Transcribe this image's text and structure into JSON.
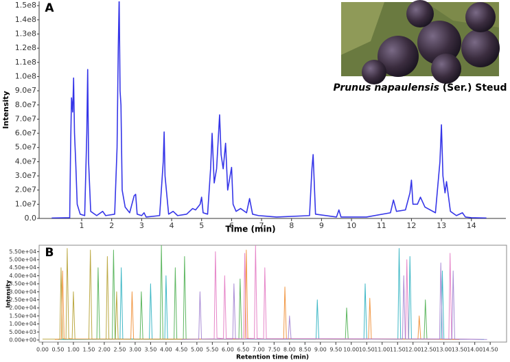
{
  "chart_data": [
    {
      "type": "line",
      "panel_label": "A",
      "xlabel": "Time (min)",
      "ylabel": "Intensity",
      "xlim": [
        -0.42,
        15.15
      ],
      "ylim": [
        0,
        153000000
      ],
      "xticks": [
        1,
        2,
        3,
        4,
        5,
        6,
        7,
        8,
        9,
        10,
        11,
        12,
        13,
        14
      ],
      "yticks": [
        {
          "value": 0,
          "label": "0.0"
        },
        {
          "value": 10000000,
          "label": "1.0e7"
        },
        {
          "value": 20000000,
          "label": "2.0e7"
        },
        {
          "value": 30000000,
          "label": "3.0e7"
        },
        {
          "value": 40000000,
          "label": "4.0e7"
        },
        {
          "value": 50000000,
          "label": "5.0e7"
        },
        {
          "value": 60000000,
          "label": "6.0e7"
        },
        {
          "value": 70000000,
          "label": "7.0e7"
        },
        {
          "value": 80000000,
          "label": "8.0e7"
        },
        {
          "value": 90000000,
          "label": "9.0e7"
        },
        {
          "value": 100000000,
          "label": "1.0e8"
        },
        {
          "value": 110000000,
          "label": "1.1e8"
        },
        {
          "value": 120000000,
          "label": "1.2e8"
        },
        {
          "value": 130000000,
          "label": "1.3e8"
        },
        {
          "value": 140000000,
          "label": "1.4e8"
        },
        {
          "value": 150000000,
          "label": "1.5e8"
        }
      ],
      "caption": {
        "italic": "Prunus napaulensis",
        "rest": "(Ser.) Steud"
      },
      "series": [
        {
          "color": "#1f1fe6",
          "x": [
            0,
            0.6,
            0.63,
            0.66,
            0.7,
            0.73,
            0.76,
            0.8,
            0.85,
            0.95,
            1.1,
            1.17,
            1.2,
            1.23,
            1.3,
            1.5,
            1.7,
            1.8,
            2.1,
            2.18,
            2.22,
            2.25,
            2.28,
            2.31,
            2.35,
            2.45,
            2.6,
            2.75,
            2.8,
            2.85,
            3.0,
            3.08,
            3.15,
            3.6,
            3.72,
            3.75,
            3.78,
            3.9,
            4.05,
            4.2,
            4.5,
            4.7,
            4.8,
            4.95,
            5.0,
            5.05,
            5.2,
            5.3,
            5.35,
            5.42,
            5.5,
            5.6,
            5.65,
            5.72,
            5.8,
            5.87,
            6.0,
            6.05,
            6.15,
            6.3,
            6.5,
            6.6,
            6.7,
            6.9,
            7.5,
            8.6,
            8.68,
            8.72,
            8.8,
            9.5,
            9.58,
            9.65,
            10.5,
            11.3,
            11.4,
            11.5,
            11.8,
            11.95,
            12.0,
            12.05,
            12.2,
            12.3,
            12.45,
            12.8,
            12.95,
            13.0,
            13.05,
            13.12,
            13.17,
            13.3,
            13.5,
            13.7,
            13.8,
            14.0,
            14.5
          ],
          "values": [
            300000,
            500000,
            50000000,
            85000000,
            75000000,
            99000000,
            60000000,
            40000000,
            10000000,
            3000000,
            2000000,
            60000000,
            105000000,
            40000000,
            5000000,
            2000000,
            5000000,
            2000000,
            3000000,
            50000000,
            120000000,
            156000000,
            90000000,
            80000000,
            20000000,
            8000000,
            4000000,
            16000000,
            17000000,
            3000000,
            2000000,
            4000000,
            1000000,
            2000000,
            40000000,
            61000000,
            30000000,
            3000000,
            5000000,
            2000000,
            3000000,
            7000000,
            6000000,
            10000000,
            15000000,
            4000000,
            3000000,
            35000000,
            60000000,
            25000000,
            35000000,
            73000000,
            45000000,
            35000000,
            53000000,
            20000000,
            36000000,
            10000000,
            5000000,
            7000000,
            4000000,
            14000000,
            3000000,
            2000000,
            1000000,
            2000000,
            35000000,
            45000000,
            3000000,
            1000000,
            6000000,
            1000000,
            1000000,
            4000000,
            13000000,
            5000000,
            6000000,
            18000000,
            27000000,
            10000000,
            10000000,
            15000000,
            8000000,
            4000000,
            40000000,
            66000000,
            30000000,
            18000000,
            26000000,
            5000000,
            2000000,
            4000000,
            1000000,
            500000,
            300000
          ]
        }
      ]
    },
    {
      "type": "line",
      "panel_label": "B",
      "xlabel": "Retention time (min)",
      "ylabel": "Intensity",
      "xlim": [
        -0.11,
        15.03
      ],
      "ylim": [
        -1300,
        59000
      ],
      "xticks": [
        {
          "value": 0,
          "label": "0.00"
        },
        {
          "value": 0.5,
          "label": "0.50"
        },
        {
          "value": 1,
          "label": "1.00"
        },
        {
          "value": 1.5,
          "label": "1.50"
        },
        {
          "value": 2,
          "label": "2.00"
        },
        {
          "value": 2.5,
          "label": "2.50"
        },
        {
          "value": 3,
          "label": "3.00"
        },
        {
          "value": 3.5,
          "label": "3.50"
        },
        {
          "value": 4,
          "label": "4.00"
        },
        {
          "value": 4.5,
          "label": "4.50"
        },
        {
          "value": 5,
          "label": "5.00"
        },
        {
          "value": 5.5,
          "label": "5.50"
        },
        {
          "value": 6,
          "label": "6.00"
        },
        {
          "value": 6.5,
          "label": "6.50"
        },
        {
          "value": 7,
          "label": "7.00"
        },
        {
          "value": 7.5,
          "label": "7.50"
        },
        {
          "value": 8,
          "label": "8.00"
        },
        {
          "value": 8.5,
          "label": "8.50"
        },
        {
          "value": 9,
          "label": "9.00"
        },
        {
          "value": 9.5,
          "label": "9.50"
        },
        {
          "value": 10,
          "label": "10.00"
        },
        {
          "value": 10.5,
          "label": "10.50"
        },
        {
          "value": 11,
          "label": "11.00"
        },
        {
          "value": 11.5,
          "label": "11.50"
        },
        {
          "value": 12,
          "label": "12.00"
        },
        {
          "value": 12.5,
          "label": "12.50"
        },
        {
          "value": 13,
          "label": "13.00"
        },
        {
          "value": 13.5,
          "label": "13.50"
        },
        {
          "value": 14,
          "label": "14.00"
        },
        {
          "value": 14.5,
          "label": "14.50"
        }
      ],
      "yticks": [
        {
          "value": 0,
          "label": "0.00e+00"
        },
        {
          "value": 5000,
          "label": "5.00e+03"
        },
        {
          "value": 10000,
          "label": "1.00e+04"
        },
        {
          "value": 15000,
          "label": "1.50e+04"
        },
        {
          "value": 20000,
          "label": "2.00e+04"
        },
        {
          "value": 25000,
          "label": "2.50e+04"
        },
        {
          "value": 30000,
          "label": "3.00e+04"
        },
        {
          "value": 35000,
          "label": "3.50e+04"
        },
        {
          "value": 40000,
          "label": "4.00e+04"
        },
        {
          "value": 45000,
          "label": "4.50e+04"
        },
        {
          "value": 50000,
          "label": "5.00e+04"
        },
        {
          "value": 55000,
          "label": "5.50e+04"
        }
      ],
      "series": [
        {
          "color": "#b5a030",
          "x": [
            0,
            0.56,
            0.6,
            0.65,
            0.76,
            0.8,
            0.85,
            0.96,
            1.0,
            1.05,
            1.5,
            1.55,
            1.6,
            2.06,
            2.1,
            2.15,
            2.36,
            2.4,
            2.45,
            4.5
          ],
          "values": [
            500,
            500,
            45000,
            800,
            600,
            57000,
            900,
            700,
            30000,
            600,
            500,
            56000,
            700,
            500,
            52000,
            600,
            500,
            30000,
            500,
            400
          ]
        },
        {
          "color": "#4caf50",
          "x": [
            0.5,
            1.76,
            1.8,
            1.85,
            2.26,
            2.3,
            2.35,
            3.16,
            3.2,
            3.25,
            3.81,
            3.85,
            3.9,
            4.26,
            4.3,
            4.35,
            4.56,
            4.6,
            4.65,
            6.36,
            6.4,
            6.45,
            9.81,
            9.85,
            9.9,
            12.36,
            12.4,
            12.45,
            14.0
          ],
          "values": [
            400,
            500,
            45000,
            600,
            500,
            56000,
            700,
            500,
            30000,
            600,
            500,
            59000,
            700,
            500,
            45000,
            600,
            500,
            52000,
            600,
            500,
            38000,
            600,
            500,
            20000,
            600,
            500,
            25000,
            500,
            400
          ]
        },
        {
          "color": "#2ab0c0",
          "x": [
            0.5,
            2.51,
            2.55,
            2.6,
            3.46,
            3.5,
            3.55,
            3.96,
            4.0,
            4.05,
            8.86,
            8.9,
            8.95,
            10.41,
            10.45,
            10.5,
            11.51,
            11.55,
            11.6,
            11.86,
            11.9,
            11.95,
            12.91,
            12.95,
            13.0,
            14.3
          ],
          "values": [
            300,
            500,
            45000,
            700,
            500,
            35000,
            600,
            500,
            40000,
            600,
            500,
            25000,
            600,
            500,
            35000,
            700,
            500,
            57000,
            800,
            600,
            52000,
            700,
            500,
            43000,
            600,
            300
          ]
        },
        {
          "color": "#e377c2",
          "x": [
            4.8,
            5.56,
            5.6,
            5.65,
            5.86,
            5.9,
            5.95,
            6.51,
            6.55,
            6.6,
            6.86,
            6.9,
            6.95,
            7.16,
            7.2,
            7.25,
            11.76,
            11.8,
            11.85,
            13.16,
            13.2,
            13.25,
            14.2
          ],
          "values": [
            500,
            800,
            55000,
            1200,
            900,
            40000,
            1000,
            800,
            54000,
            1100,
            900,
            59000,
            1000,
            800,
            45000,
            900,
            700,
            50000,
            800,
            600,
            54000,
            700,
            400
          ]
        },
        {
          "color": "#f08c30",
          "x": [
            0.4,
            0.61,
            0.65,
            0.7,
            2.86,
            2.9,
            2.95,
            6.56,
            6.6,
            6.65,
            7.81,
            7.85,
            7.9,
            10.56,
            10.6,
            10.65,
            12.16,
            12.2,
            12.25,
            13.5
          ],
          "values": [
            300,
            500,
            43000,
            600,
            500,
            30000,
            600,
            500,
            56000,
            700,
            500,
            33000,
            600,
            500,
            26000,
            600,
            500,
            15000,
            500,
            300
          ]
        },
        {
          "color": "#a080d0",
          "x": [
            4.5,
            5.06,
            5.1,
            5.15,
            6.16,
            6.2,
            6.25,
            7.96,
            8.0,
            8.05,
            11.66,
            11.7,
            11.75,
            12.86,
            12.9,
            12.95,
            13.26,
            13.3,
            13.35,
            14.4
          ],
          "values": [
            300,
            500,
            30000,
            600,
            500,
            35000,
            600,
            500,
            15000,
            600,
            500,
            40000,
            600,
            500,
            48000,
            600,
            500,
            43000,
            500,
            300
          ]
        }
      ]
    }
  ]
}
